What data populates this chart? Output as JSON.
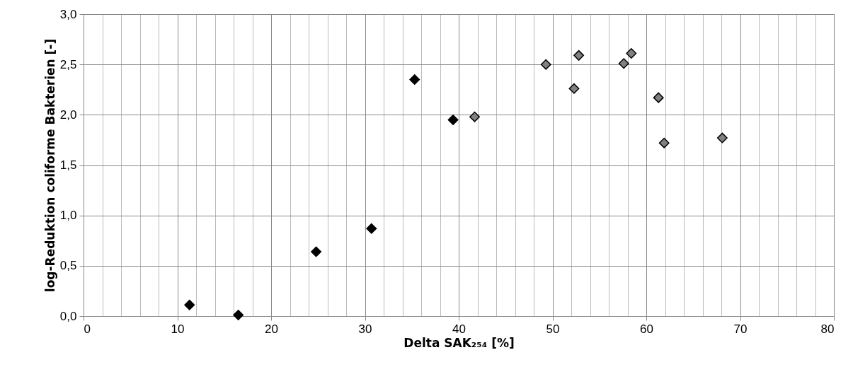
{
  "chart_data": {
    "type": "scatter",
    "xlabel": "Delta SAK₂₅₄ [%]",
    "ylabel": "log-Reduktion coliforme Bakterien [-]",
    "marker": "diamond",
    "grid": true,
    "xlim": [
      0,
      80
    ],
    "xticks": [
      0,
      10,
      20,
      30,
      40,
      50,
      60,
      70,
      80
    ],
    "ylim": [
      0,
      3
    ],
    "yticks": [
      {
        "value": 0,
        "label": "0,0"
      },
      {
        "value": 0.5,
        "label": "0,5"
      },
      {
        "value": 1,
        "label": "1,0"
      },
      {
        "value": 1.5,
        "label": "1,5"
      },
      {
        "value": 2,
        "label": "2,0"
      },
      {
        "value": 2.5,
        "label": "2,5"
      },
      {
        "value": 3,
        "label": "3,0"
      }
    ],
    "series": [
      {
        "color": "#000000",
        "x": [
          11.3,
          16.5,
          24.8,
          30.7,
          35.3,
          39.4
        ],
        "values": [
          0.11,
          0.01,
          0.64,
          0.87,
          2.35,
          1.95
        ]
      },
      {
        "color": "#808080",
        "x": [
          41.7,
          49.3,
          52.8,
          52.3,
          57.6,
          58.4,
          61.3,
          61.9,
          68.1
        ],
        "values": [
          1.98,
          2.5,
          2.59,
          2.26,
          2.51,
          2.61,
          2.17,
          1.72,
          1.77
        ]
      }
    ]
  }
}
